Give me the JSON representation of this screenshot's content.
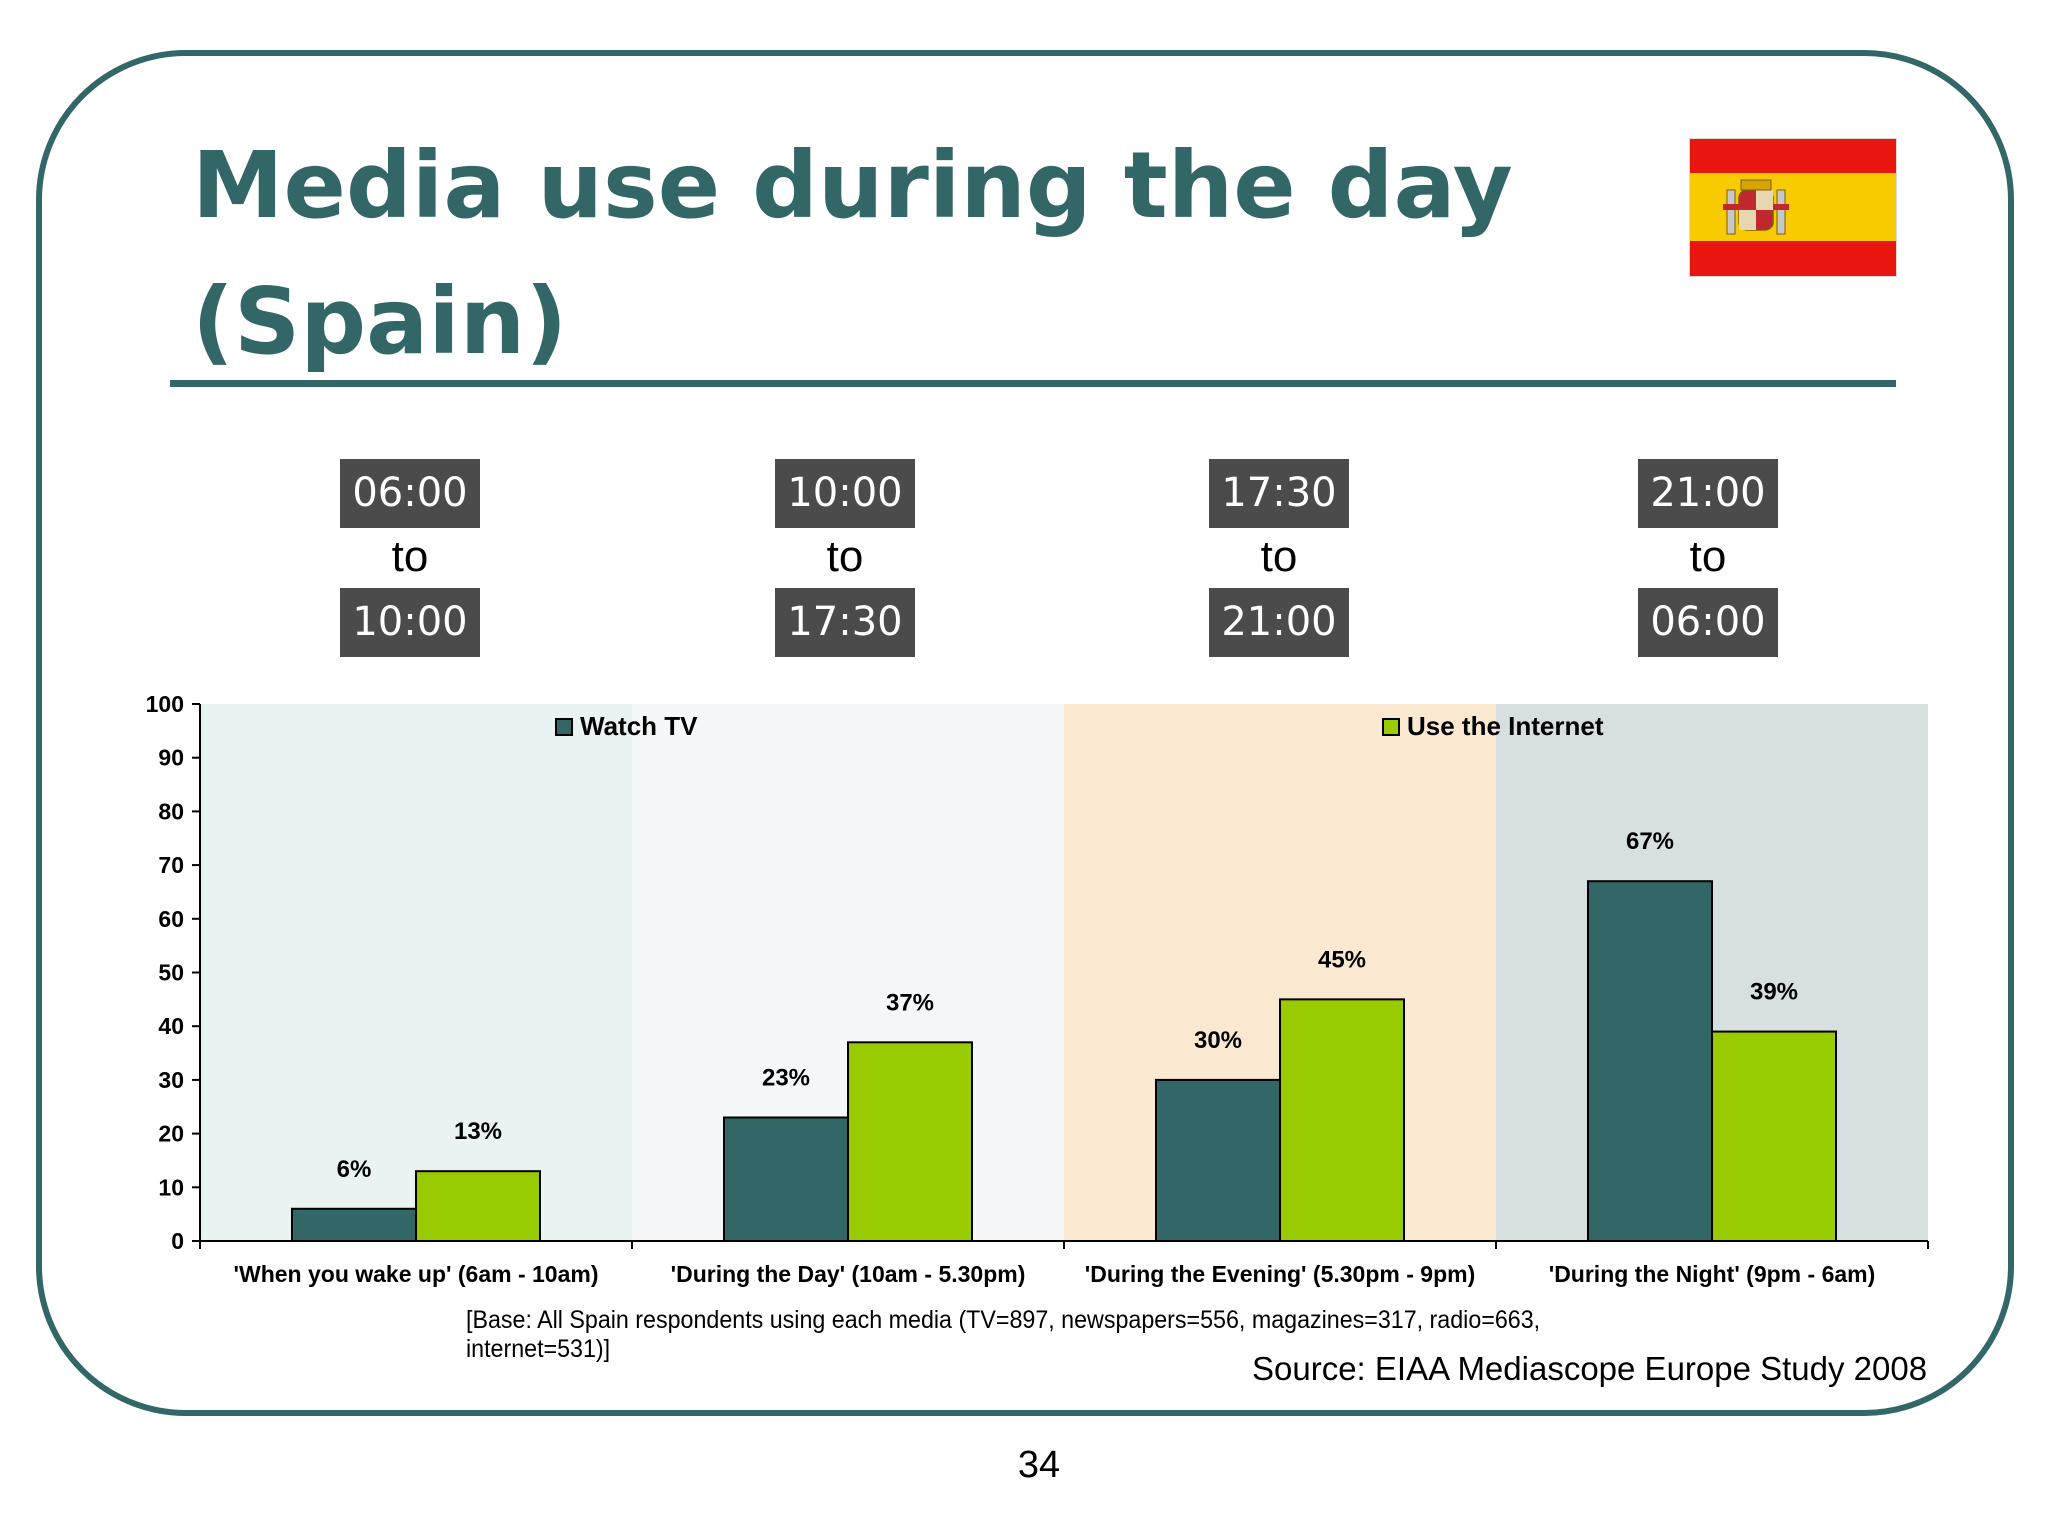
{
  "title": "Media use during the day (Spain)",
  "time_ranges": [
    {
      "from": "06:00",
      "to_word": "to",
      "to": "10:00"
    },
    {
      "from": "10:00",
      "to_word": "to",
      "to": "17:30"
    },
    {
      "from": "17:30",
      "to_word": "to",
      "to": "21:00"
    },
    {
      "from": "21:00",
      "to_word": "to",
      "to": "06:00"
    }
  ],
  "colors": {
    "accent": "#336666",
    "watch_tv": "#336666",
    "use_internet": "#99cc00",
    "panel_backgrounds": [
      "#e8f3f2",
      "#f5f7f9",
      "#fbe8d0",
      "#d6e0e0"
    ],
    "time_box": "#4b4b4b"
  },
  "chart_data": {
    "type": "bar",
    "categories": [
      "'When you wake up' (6am - 10am)",
      "'During the Day' (10am - 5.30pm)",
      "'During the Evening' (5.30pm - 9pm)",
      "'During the Night' (9pm - 6am)"
    ],
    "series": [
      {
        "name": "Watch TV",
        "values": [
          6,
          23,
          30,
          67
        ],
        "labels": [
          "6%",
          "23%",
          "30%",
          "67%"
        ]
      },
      {
        "name": "Use the Internet",
        "values": [
          13,
          37,
          45,
          39
        ],
        "labels": [
          "13%",
          "37%",
          "45%",
          "39%"
        ]
      }
    ],
    "ylim": [
      0,
      100
    ],
    "yticks": [
      0,
      10,
      20,
      30,
      40,
      50,
      60,
      70,
      80,
      90,
      100
    ],
    "grid": false,
    "legend_placement": "top"
  },
  "base_note": "[Base: All Spain respondents using each media (TV=897, newspapers=556, magazines=317, radio=663, internet=531)]",
  "source": "Source: EIAA Mediascope Europe Study 2008",
  "page_number": "34"
}
